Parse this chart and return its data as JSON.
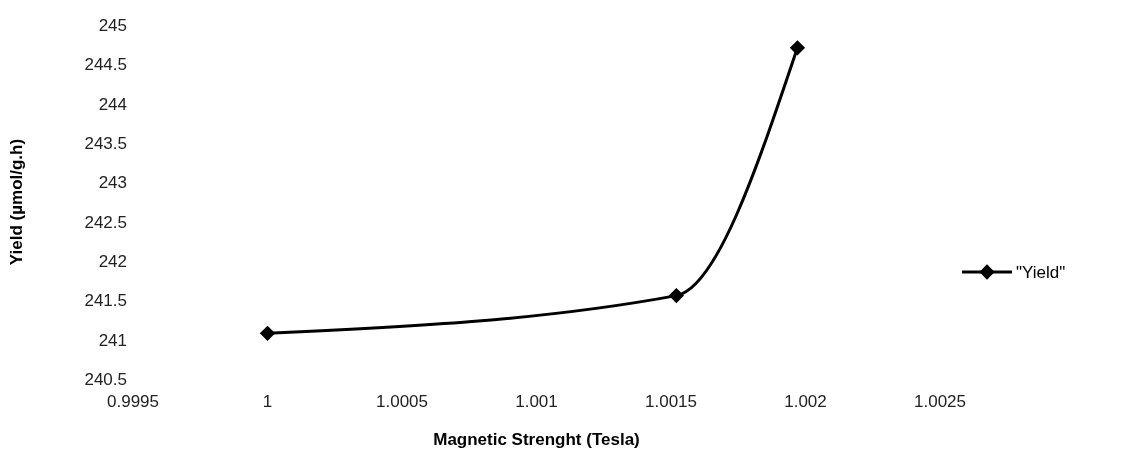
{
  "chart_data": {
    "type": "line",
    "xlabel": "Magnetic Strenght (Tesla)",
    "ylabel": "Yield (µmol/g.h)",
    "x": [
      1,
      1.00152,
      1.00197
    ],
    "series": [
      {
        "name": "\"Yield\"",
        "color": "#000000",
        "values": [
          241.08,
          241.56,
          244.71
        ]
      }
    ],
    "xlim": [
      0.9995,
      1.0025
    ],
    "xticks": [
      0.9995,
      1,
      1.0005,
      1.001,
      1.0015,
      1.002,
      1.0025
    ],
    "ylim": [
      240.5,
      245
    ],
    "yticks": [
      240.5,
      241,
      241.5,
      242,
      242.5,
      243,
      243.5,
      244,
      244.5,
      245
    ],
    "legend": "right",
    "marker": "diamond",
    "line_style": "solid",
    "grid": false
  }
}
